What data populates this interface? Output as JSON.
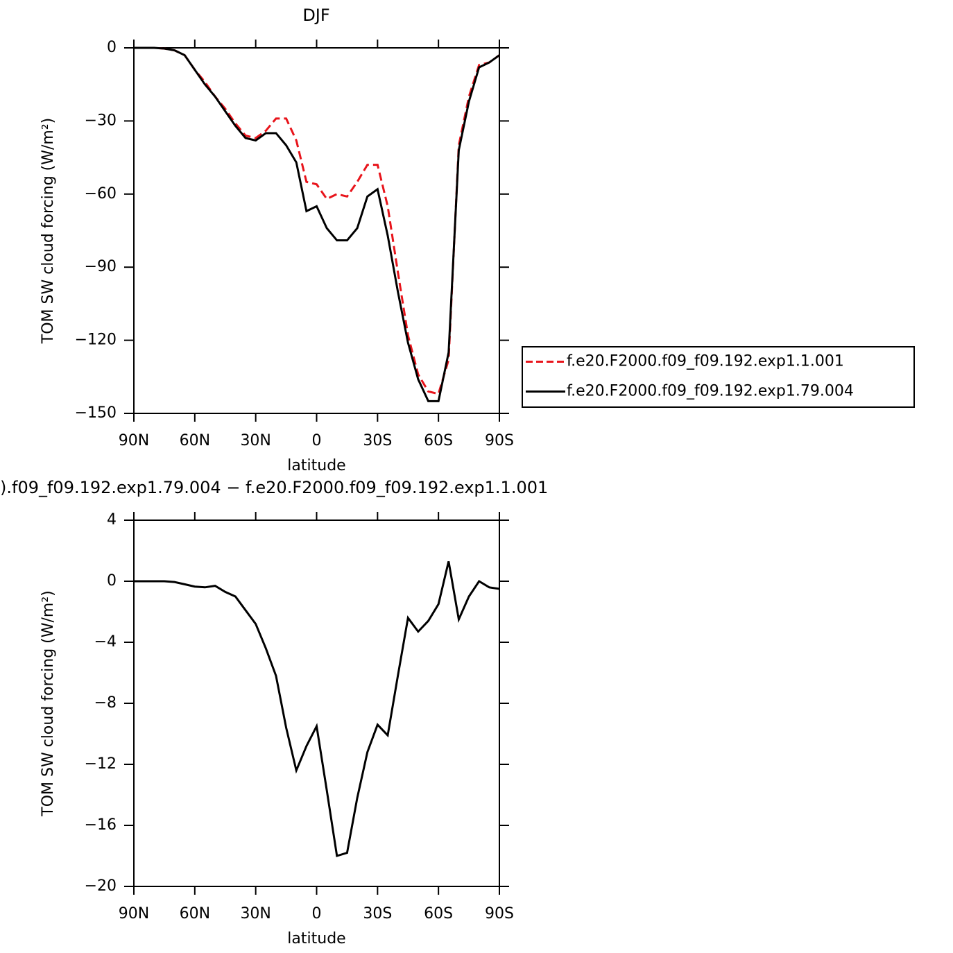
{
  "chart_data": [
    {
      "type": "line",
      "title": "DJF",
      "xlabel": "latitude",
      "ylabel": "TOM SW cloud forcing (W/m²)",
      "x": [
        90,
        85,
        80,
        75,
        70,
        65,
        60,
        55,
        50,
        45,
        40,
        35,
        30,
        25,
        20,
        15,
        10,
        5,
        0,
        -5,
        -10,
        -15,
        -20,
        -25,
        -30,
        -35,
        -40,
        -45,
        -50,
        -55,
        -60,
        -65,
        -70,
        -75,
        -80,
        -85,
        -90
      ],
      "xlim": [
        90,
        -90
      ],
      "xticks": [
        {
          "value": 90,
          "label": "90N"
        },
        {
          "value": 60,
          "label": "60N"
        },
        {
          "value": 30,
          "label": "30N"
        },
        0,
        {
          "value": -30,
          "label": "30S"
        },
        {
          "value": -60,
          "label": "60S"
        },
        {
          "value": -90,
          "label": "90S"
        }
      ],
      "ylim": [
        -150,
        0
      ],
      "yticks": [
        0,
        {
          "value": -30,
          "label": "−30"
        },
        {
          "value": -60,
          "label": "−60"
        },
        {
          "value": -90,
          "label": "−90"
        },
        {
          "value": -120,
          "label": "−120"
        },
        {
          "value": -150,
          "label": "−150"
        }
      ],
      "legend": "right",
      "series": [
        {
          "name": "f.e20.F2000.f09_f09.192.exp1.1.001",
          "color": "#e8141b",
          "dashed": true,
          "values": [
            0,
            0,
            0,
            -0.3,
            -1,
            -3,
            -9,
            -14,
            -20,
            -25,
            -31,
            -36,
            -37,
            -34,
            -29,
            -29,
            -38,
            -55,
            -56,
            -62,
            -60,
            -61,
            -55,
            -48,
            -48,
            -65,
            -92,
            -118,
            -134,
            -141,
            -142,
            -128,
            -40,
            -20,
            -7,
            -6,
            -3
          ]
        },
        {
          "name": "f.e20.F2000.f09_f09.192.exp1.79.004",
          "color": "#000000",
          "dashed": false,
          "values": [
            0,
            0,
            0,
            -0.3,
            -1,
            -3,
            -9,
            -15,
            -20,
            -26,
            -32,
            -37,
            -38,
            -35,
            -35,
            -40,
            -47,
            -67,
            -65,
            -74,
            -79,
            -79,
            -74,
            -61,
            -58,
            -77,
            -100,
            -121,
            -136,
            -145,
            -145,
            -125,
            -42,
            -22,
            -8,
            -6,
            -3
          ]
        }
      ]
    },
    {
      "type": "line",
      "title": ").f09_f09.192.exp1.79.004 − f.e20.F2000.f09_f09.192.exp1.1.001",
      "xlabel": "latitude",
      "ylabel": "TOM SW cloud forcing (W/m²)",
      "x": [
        90,
        85,
        80,
        75,
        70,
        65,
        60,
        55,
        50,
        45,
        40,
        35,
        30,
        25,
        20,
        15,
        10,
        5,
        0,
        -5,
        -10,
        -15,
        -20,
        -25,
        -30,
        -35,
        -40,
        -45,
        -50,
        -55,
        -60,
        -65,
        -70,
        -75,
        -80,
        -85,
        -90
      ],
      "xlim": [
        90,
        -90
      ],
      "xticks": [
        {
          "value": 90,
          "label": "90N"
        },
        {
          "value": 60,
          "label": "60N"
        },
        {
          "value": 30,
          "label": "30N"
        },
        0,
        {
          "value": -30,
          "label": "30S"
        },
        {
          "value": -60,
          "label": "60S"
        },
        {
          "value": -90,
          "label": "90S"
        }
      ],
      "ylim": [
        -20,
        4
      ],
      "yticks": [
        4,
        0,
        {
          "value": -4,
          "label": "−4"
        },
        {
          "value": -8,
          "label": "−8"
        },
        {
          "value": -12,
          "label": "−12"
        },
        {
          "value": -16,
          "label": "−16"
        },
        {
          "value": -20,
          "label": "−20"
        }
      ],
      "series": [
        {
          "color": "#000000",
          "dashed": false,
          "values": [
            0,
            0,
            0,
            0,
            -0.05,
            -0.2,
            -0.35,
            -0.4,
            -0.3,
            -0.7,
            -1.0,
            -1.9,
            -2.8,
            -4.4,
            -6.2,
            -9.6,
            -12.4,
            -10.8,
            -9.5,
            -13.7,
            -18,
            -17.8,
            -14.2,
            -11.2,
            -9.4,
            -10.1,
            -6.2,
            -2.4,
            -3.3,
            -2.6,
            -1.5,
            1.3,
            -2.5,
            -1.0,
            0,
            -0.4,
            -0.5
          ]
        }
      ]
    }
  ]
}
